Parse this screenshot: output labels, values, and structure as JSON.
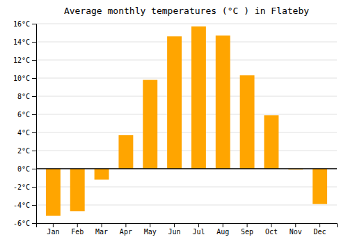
{
  "chart_data": {
    "type": "bar",
    "title": "Average monthly temperatures (°C ) in Flateby",
    "categories": [
      "Jan",
      "Feb",
      "Mar",
      "Apr",
      "May",
      "Jun",
      "Jul",
      "Aug",
      "Sep",
      "Oct",
      "Nov",
      "Dec"
    ],
    "values": [
      -5.2,
      -4.7,
      -1.2,
      3.7,
      9.8,
      14.6,
      15.7,
      14.7,
      10.3,
      5.9,
      -0.1,
      -3.9
    ],
    "color": "#FFA500",
    "ylim": [
      -6,
      16
    ],
    "yticks": [
      {
        "value": -6,
        "label": "-6°C"
      },
      {
        "value": -4,
        "label": "-4°C"
      },
      {
        "value": -2,
        "label": "-2°C"
      },
      {
        "value": 0,
        "label": "0°C"
      },
      {
        "value": 2,
        "label": "2°C"
      },
      {
        "value": 4,
        "label": "4°C"
      },
      {
        "value": 6,
        "label": "6°C"
      },
      {
        "value": 8,
        "label": "8°C"
      },
      {
        "value": 10,
        "label": "10°C"
      },
      {
        "value": 12,
        "label": "12°C"
      },
      {
        "value": 14,
        "label": "14°C"
      },
      {
        "value": 16,
        "label": "16°C"
      }
    ],
    "grid": true
  }
}
